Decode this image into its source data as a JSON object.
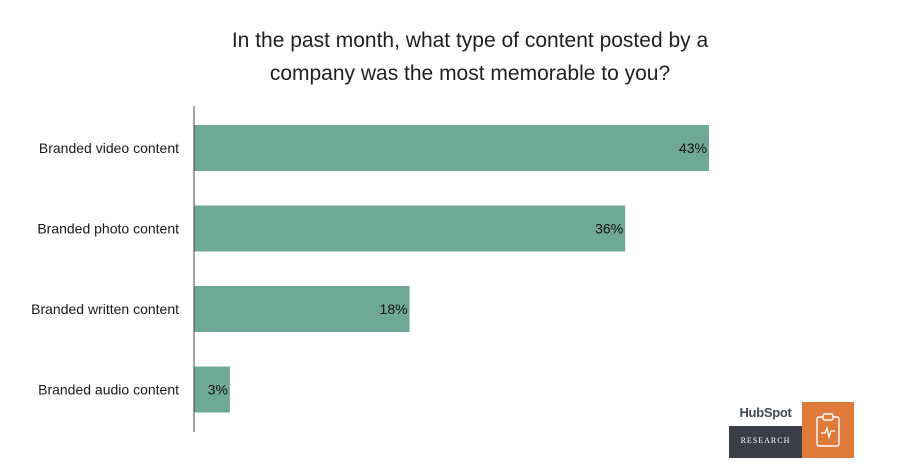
{
  "chart_data": {
    "type": "bar",
    "orientation": "horizontal",
    "title_lines": [
      "In the past month, what type of content posted by a",
      "company was the most memorable to you?"
    ],
    "categories": [
      "Branded video content",
      "Branded photo content",
      "Branded written content",
      "Branded audio content"
    ],
    "values": [
      43,
      36,
      18,
      3
    ],
    "data_labels": [
      "43%",
      "36%",
      "18%",
      "3%"
    ],
    "xlim": [
      0,
      60
    ],
    "grid": false,
    "bar_color": "#6fa994",
    "axis_color": "#444444"
  },
  "branding": {
    "logo_text": "HubSpot",
    "label": "RESEARCH",
    "dark_color": "#3a3f47",
    "accent_color": "#e07a3b",
    "icon": "clipboard-pulse-icon"
  }
}
